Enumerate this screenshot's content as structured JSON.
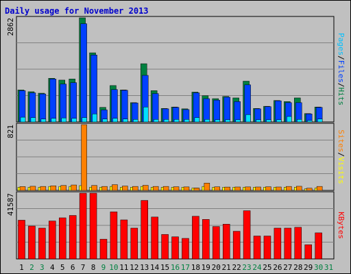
{
  "title": "Daily usage for November 2013",
  "colors": {
    "hits": "#008040",
    "files": "#0040ff",
    "pages": "#00e0ff",
    "visits": "#ffff00",
    "sites": "#ff8000",
    "kbytes": "#ff0000",
    "weekday_label": "#000000",
    "weekend_label": "#008040",
    "sep": "#000000"
  },
  "side_labels": {
    "top": [
      {
        "text": "Pages",
        "color": "#00c0ff"
      },
      {
        "text": "/",
        "color": "#000000"
      },
      {
        "text": "Files",
        "color": "#0040ff"
      },
      {
        "text": "/",
        "color": "#000000"
      },
      {
        "text": "Hits",
        "color": "#008040"
      }
    ],
    "middle": [
      {
        "text": "Sites",
        "color": "#ff8000"
      },
      {
        "text": "/",
        "color": "#000000"
      },
      {
        "text": "Visits",
        "color": "#ffff00"
      }
    ],
    "bottom": [
      {
        "text": "KBytes",
        "color": "#ff0000"
      }
    ]
  },
  "chart_data": [
    {
      "type": "bar",
      "panel": "hits-files-pages",
      "ymax_label": "2862",
      "ylim": [
        0,
        2862
      ],
      "categories": [
        "1",
        "2",
        "3",
        "4",
        "5",
        "6",
        "7",
        "8",
        "9",
        "10",
        "11",
        "12",
        "13",
        "14",
        "15",
        "16",
        "17",
        "18",
        "19",
        "20",
        "21",
        "22",
        "23",
        "24",
        "25",
        "26",
        "27",
        "28",
        "29",
        "30",
        "31"
      ],
      "weekend": [
        "2",
        "3",
        "9",
        "10",
        "16",
        "17",
        "23",
        "24",
        "30",
        "31"
      ],
      "series": [
        {
          "name": "Hits",
          "values": [
            880,
            830,
            790,
            1200,
            1150,
            1180,
            2862,
            1900,
            400,
            1000,
            880,
            530,
            1600,
            860,
            370,
            410,
            360,
            820,
            720,
            640,
            700,
            660,
            1120,
            370,
            430,
            590,
            560,
            660,
            230,
            410,
            0
          ]
        },
        {
          "name": "Files",
          "values": [
            860,
            800,
            770,
            1180,
            1040,
            1080,
            2700,
            1840,
            330,
            890,
            870,
            520,
            1280,
            780,
            360,
            400,
            340,
            800,
            640,
            600,
            680,
            560,
            1020,
            360,
            420,
            580,
            530,
            530,
            220,
            400,
            0
          ]
        },
        {
          "name": "Pages",
          "values": [
            130,
            120,
            80,
            100,
            110,
            100,
            120,
            220,
            80,
            100,
            80,
            70,
            410,
            70,
            70,
            70,
            70,
            120,
            70,
            60,
            60,
            60,
            200,
            60,
            60,
            60,
            150,
            70,
            40,
            80,
            0
          ]
        }
      ]
    },
    {
      "type": "bar",
      "panel": "visits-sites",
      "ymax_label": "821",
      "ylim": [
        0,
        821
      ],
      "categories": [
        "1",
        "2",
        "3",
        "4",
        "5",
        "6",
        "7",
        "8",
        "9",
        "10",
        "11",
        "12",
        "13",
        "14",
        "15",
        "16",
        "17",
        "18",
        "19",
        "20",
        "21",
        "22",
        "23",
        "24",
        "25",
        "26",
        "27",
        "28",
        "29",
        "30",
        "31"
      ],
      "series": [
        {
          "name": "Visits",
          "values": [
            40,
            40,
            40,
            50,
            50,
            50,
            60,
            40,
            40,
            50,
            40,
            40,
            50,
            40,
            40,
            40,
            40,
            30,
            50,
            40,
            40,
            40,
            40,
            40,
            40,
            40,
            40,
            40,
            20,
            30,
            0
          ]
        },
        {
          "name": "Sites",
          "values": [
            48,
            52,
            50,
            58,
            62,
            68,
            821,
            62,
            50,
            72,
            55,
            50,
            64,
            50,
            50,
            46,
            44,
            30,
            92,
            45,
            42,
            43,
            44,
            43,
            46,
            43,
            50,
            52,
            28,
            50,
            0
          ]
        }
      ]
    },
    {
      "type": "bar",
      "panel": "kbytes",
      "ymax_label": "41587",
      "ylim": [
        0,
        41587
      ],
      "categories": [
        "1",
        "2",
        "3",
        "4",
        "5",
        "6",
        "7",
        "8",
        "9",
        "10",
        "11",
        "12",
        "13",
        "14",
        "15",
        "16",
        "17",
        "18",
        "19",
        "20",
        "21",
        "22",
        "23",
        "24",
        "25",
        "26",
        "27",
        "28",
        "29",
        "30",
        "31"
      ],
      "series": [
        {
          "name": "KBytes",
          "values": [
            24500,
            20800,
            19500,
            24000,
            26000,
            27500,
            41587,
            41587,
            12500,
            29800,
            24700,
            19500,
            37000,
            26500,
            15500,
            14000,
            13000,
            27000,
            25000,
            20500,
            22000,
            17500,
            30500,
            14500,
            14500,
            19500,
            19500,
            20000,
            9000,
            16500,
            0
          ]
        }
      ]
    }
  ]
}
